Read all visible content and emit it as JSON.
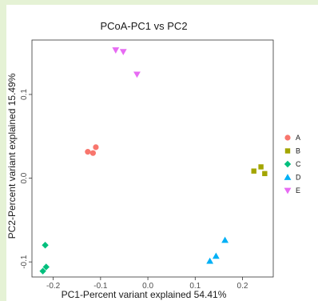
{
  "chart_data": {
    "type": "scatter",
    "title": "PCoA-PC1 vs PC2",
    "xlabel": "PC1-Percent variant explained 54.41%",
    "ylabel": "PC2-Percent variant explained 15.49%",
    "xlim": [
      -0.245,
      0.265
    ],
    "ylim": [
      -0.118,
      0.165
    ],
    "xticks": [
      {
        "value": -0.2,
        "label": "-0.2"
      },
      {
        "value": -0.1,
        "label": "-0.1"
      },
      {
        "value": 0.0,
        "label": "0.0"
      },
      {
        "value": 0.1,
        "label": "0.1"
      },
      {
        "value": 0.2,
        "label": "0.2"
      }
    ],
    "yticks": [
      {
        "value": -0.1,
        "label": "-0.1"
      },
      {
        "value": 0.0,
        "label": "0.0"
      },
      {
        "value": 0.1,
        "label": "0.1"
      }
    ],
    "grid": false,
    "legend_position": "right",
    "series": [
      {
        "name": "A",
        "shape": "circle",
        "color": "#F8766D",
        "points": [
          [
            -0.127,
            0.0315
          ],
          [
            -0.116,
            0.03
          ],
          [
            -0.11,
            0.037
          ]
        ]
      },
      {
        "name": "B",
        "shape": "square",
        "color": "#A3A500",
        "points": [
          [
            0.224,
            0.0085
          ],
          [
            0.239,
            0.0135
          ],
          [
            0.247,
            0.0055
          ]
        ]
      },
      {
        "name": "C",
        "shape": "diamond",
        "color": "#00BF7D",
        "points": [
          [
            -0.222,
            -0.111
          ],
          [
            -0.217,
            -0.08
          ],
          [
            -0.215,
            -0.106
          ]
        ]
      },
      {
        "name": "D",
        "shape": "triangle",
        "color": "#00B0F6",
        "points": [
          [
            0.131,
            -0.099
          ],
          [
            0.144,
            -0.093
          ],
          [
            0.163,
            -0.074
          ]
        ]
      },
      {
        "name": "E",
        "shape": "triangle-down",
        "color": "#E76BF3",
        "points": [
          [
            -0.068,
            0.153
          ],
          [
            -0.052,
            0.151
          ],
          [
            -0.023,
            0.124
          ]
        ]
      }
    ]
  }
}
